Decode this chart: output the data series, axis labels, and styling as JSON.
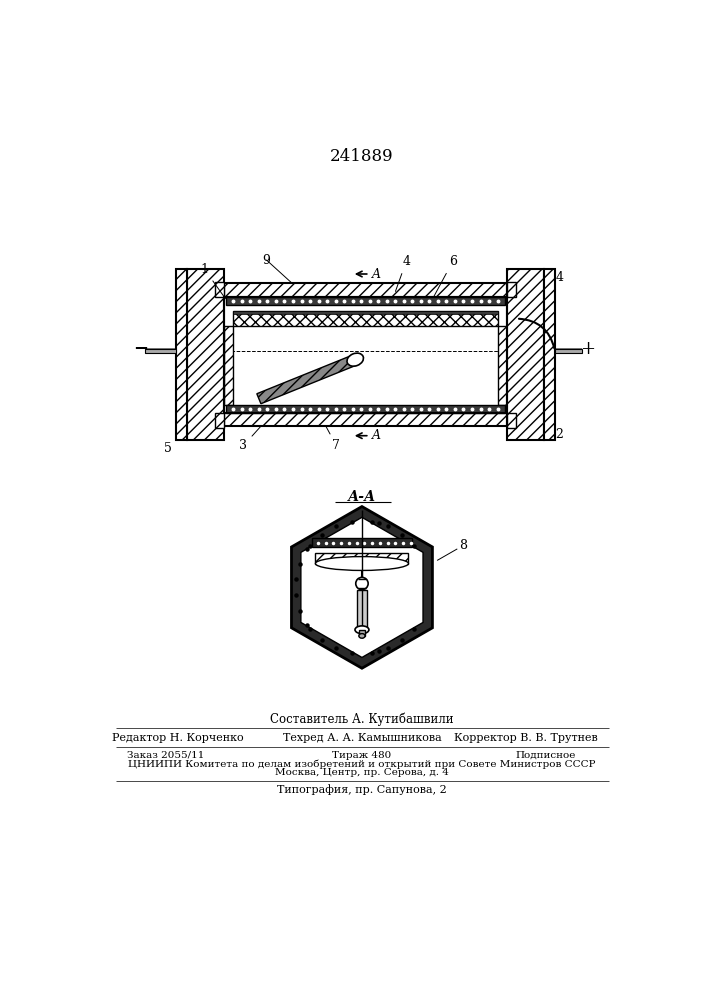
{
  "patent_number": "241889",
  "background_color": "#ffffff",
  "line_color": "#000000",
  "fig_width": 7.07,
  "fig_height": 10.0,
  "dpi": 100,
  "footer": {
    "sostavitel": "Составитель А. Кутибашвили",
    "redaktor": "Редактор Н. Корченко",
    "tehred": "Техред А. А. Камышникова",
    "korrektor": "Корректор В. В. Трутнев",
    "zakaz": "Заказ 2055/11",
    "tirazh": "Тираж 480",
    "podpisnoe": "Подписное",
    "tsniip": "ЦНИИПИ Комитета по делам изобретений и открытий при Совете Министров СССР",
    "moskva": "Москва, Центр, пр. Серова, д. 4",
    "tipografia": "Типография, пр. Сапунова, 2"
  }
}
